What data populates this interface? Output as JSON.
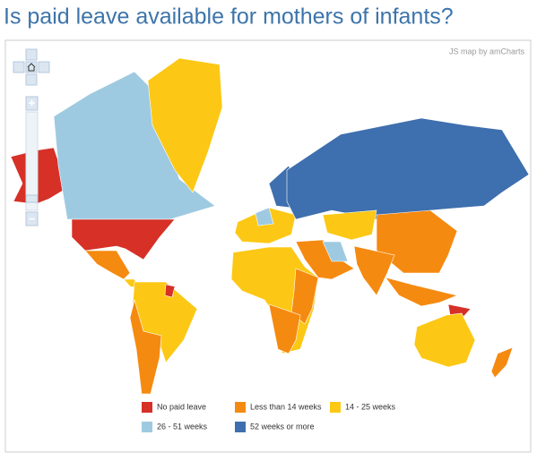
{
  "header": {
    "title": "Is paid leave available for mothers of infants?"
  },
  "map": {
    "credit": "JS map by amCharts",
    "legend": [
      {
        "label": "No paid leave",
        "color": "#d63027"
      },
      {
        "label": "Less than 14 weeks",
        "color": "#f58a10"
      },
      {
        "label": "14 - 25 weeks",
        "color": "#fcc815"
      },
      {
        "label": "26 - 51 weeks",
        "color": "#9ecae1"
      },
      {
        "label": "52 weeks or more",
        "color": "#3e6fae"
      }
    ]
  }
}
